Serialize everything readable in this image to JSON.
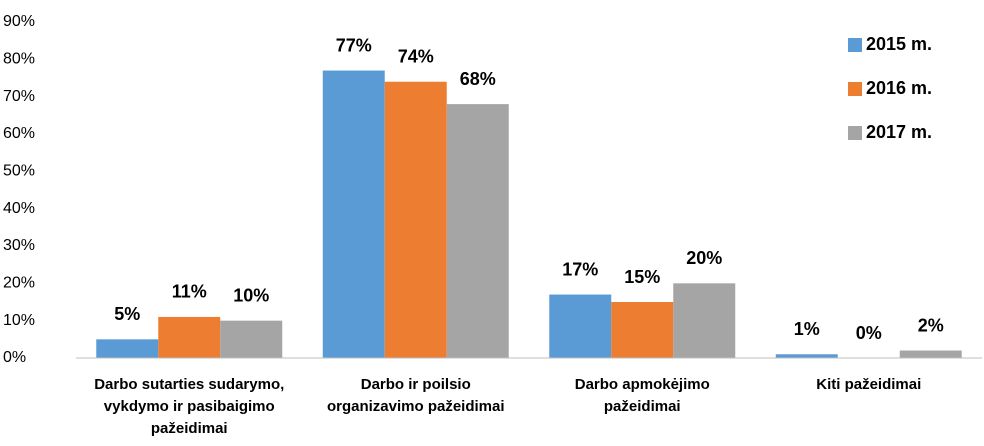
{
  "chart_data": {
    "type": "bar",
    "categories": [
      "Darbo sutarties sudarymo, vykdymo ir pasibaigimo pažeidimai",
      "Darbo ir poilsio organizavimo pažeidimai",
      "Darbo apmokėjimo pažeidimai",
      "Kiti pažeidimai"
    ],
    "series": [
      {
        "name": "2015 m.",
        "color": "#5b9bd5",
        "values": [
          5,
          77,
          17,
          1
        ],
        "value_labels": [
          "5%",
          "77%",
          "17%",
          "1%"
        ]
      },
      {
        "name": "2016 m.",
        "color": "#ed7d31",
        "values": [
          11,
          74,
          15,
          0
        ],
        "value_labels": [
          "11%",
          "74%",
          "15%",
          "0%"
        ]
      },
      {
        "name": "2017 m.",
        "color": "#a5a5a5",
        "values": [
          10,
          68,
          20,
          2
        ],
        "value_labels": [
          "10%",
          "68%",
          "20%",
          "2%"
        ]
      }
    ],
    "ylim": [
      0,
      90
    ],
    "yticks": [
      {
        "value": 0,
        "label": "0%"
      },
      {
        "value": 10,
        "label": "10%"
      },
      {
        "value": 20,
        "label": "20%"
      },
      {
        "value": 30,
        "label": "30%"
      },
      {
        "value": 40,
        "label": "40%"
      },
      {
        "value": 50,
        "label": "50%"
      },
      {
        "value": 60,
        "label": "60%"
      },
      {
        "value": 70,
        "label": "70%"
      },
      {
        "value": 80,
        "label": "80%"
      },
      {
        "value": 90,
        "label": "90%"
      }
    ],
    "grid": false,
    "legend": "top-right"
  }
}
